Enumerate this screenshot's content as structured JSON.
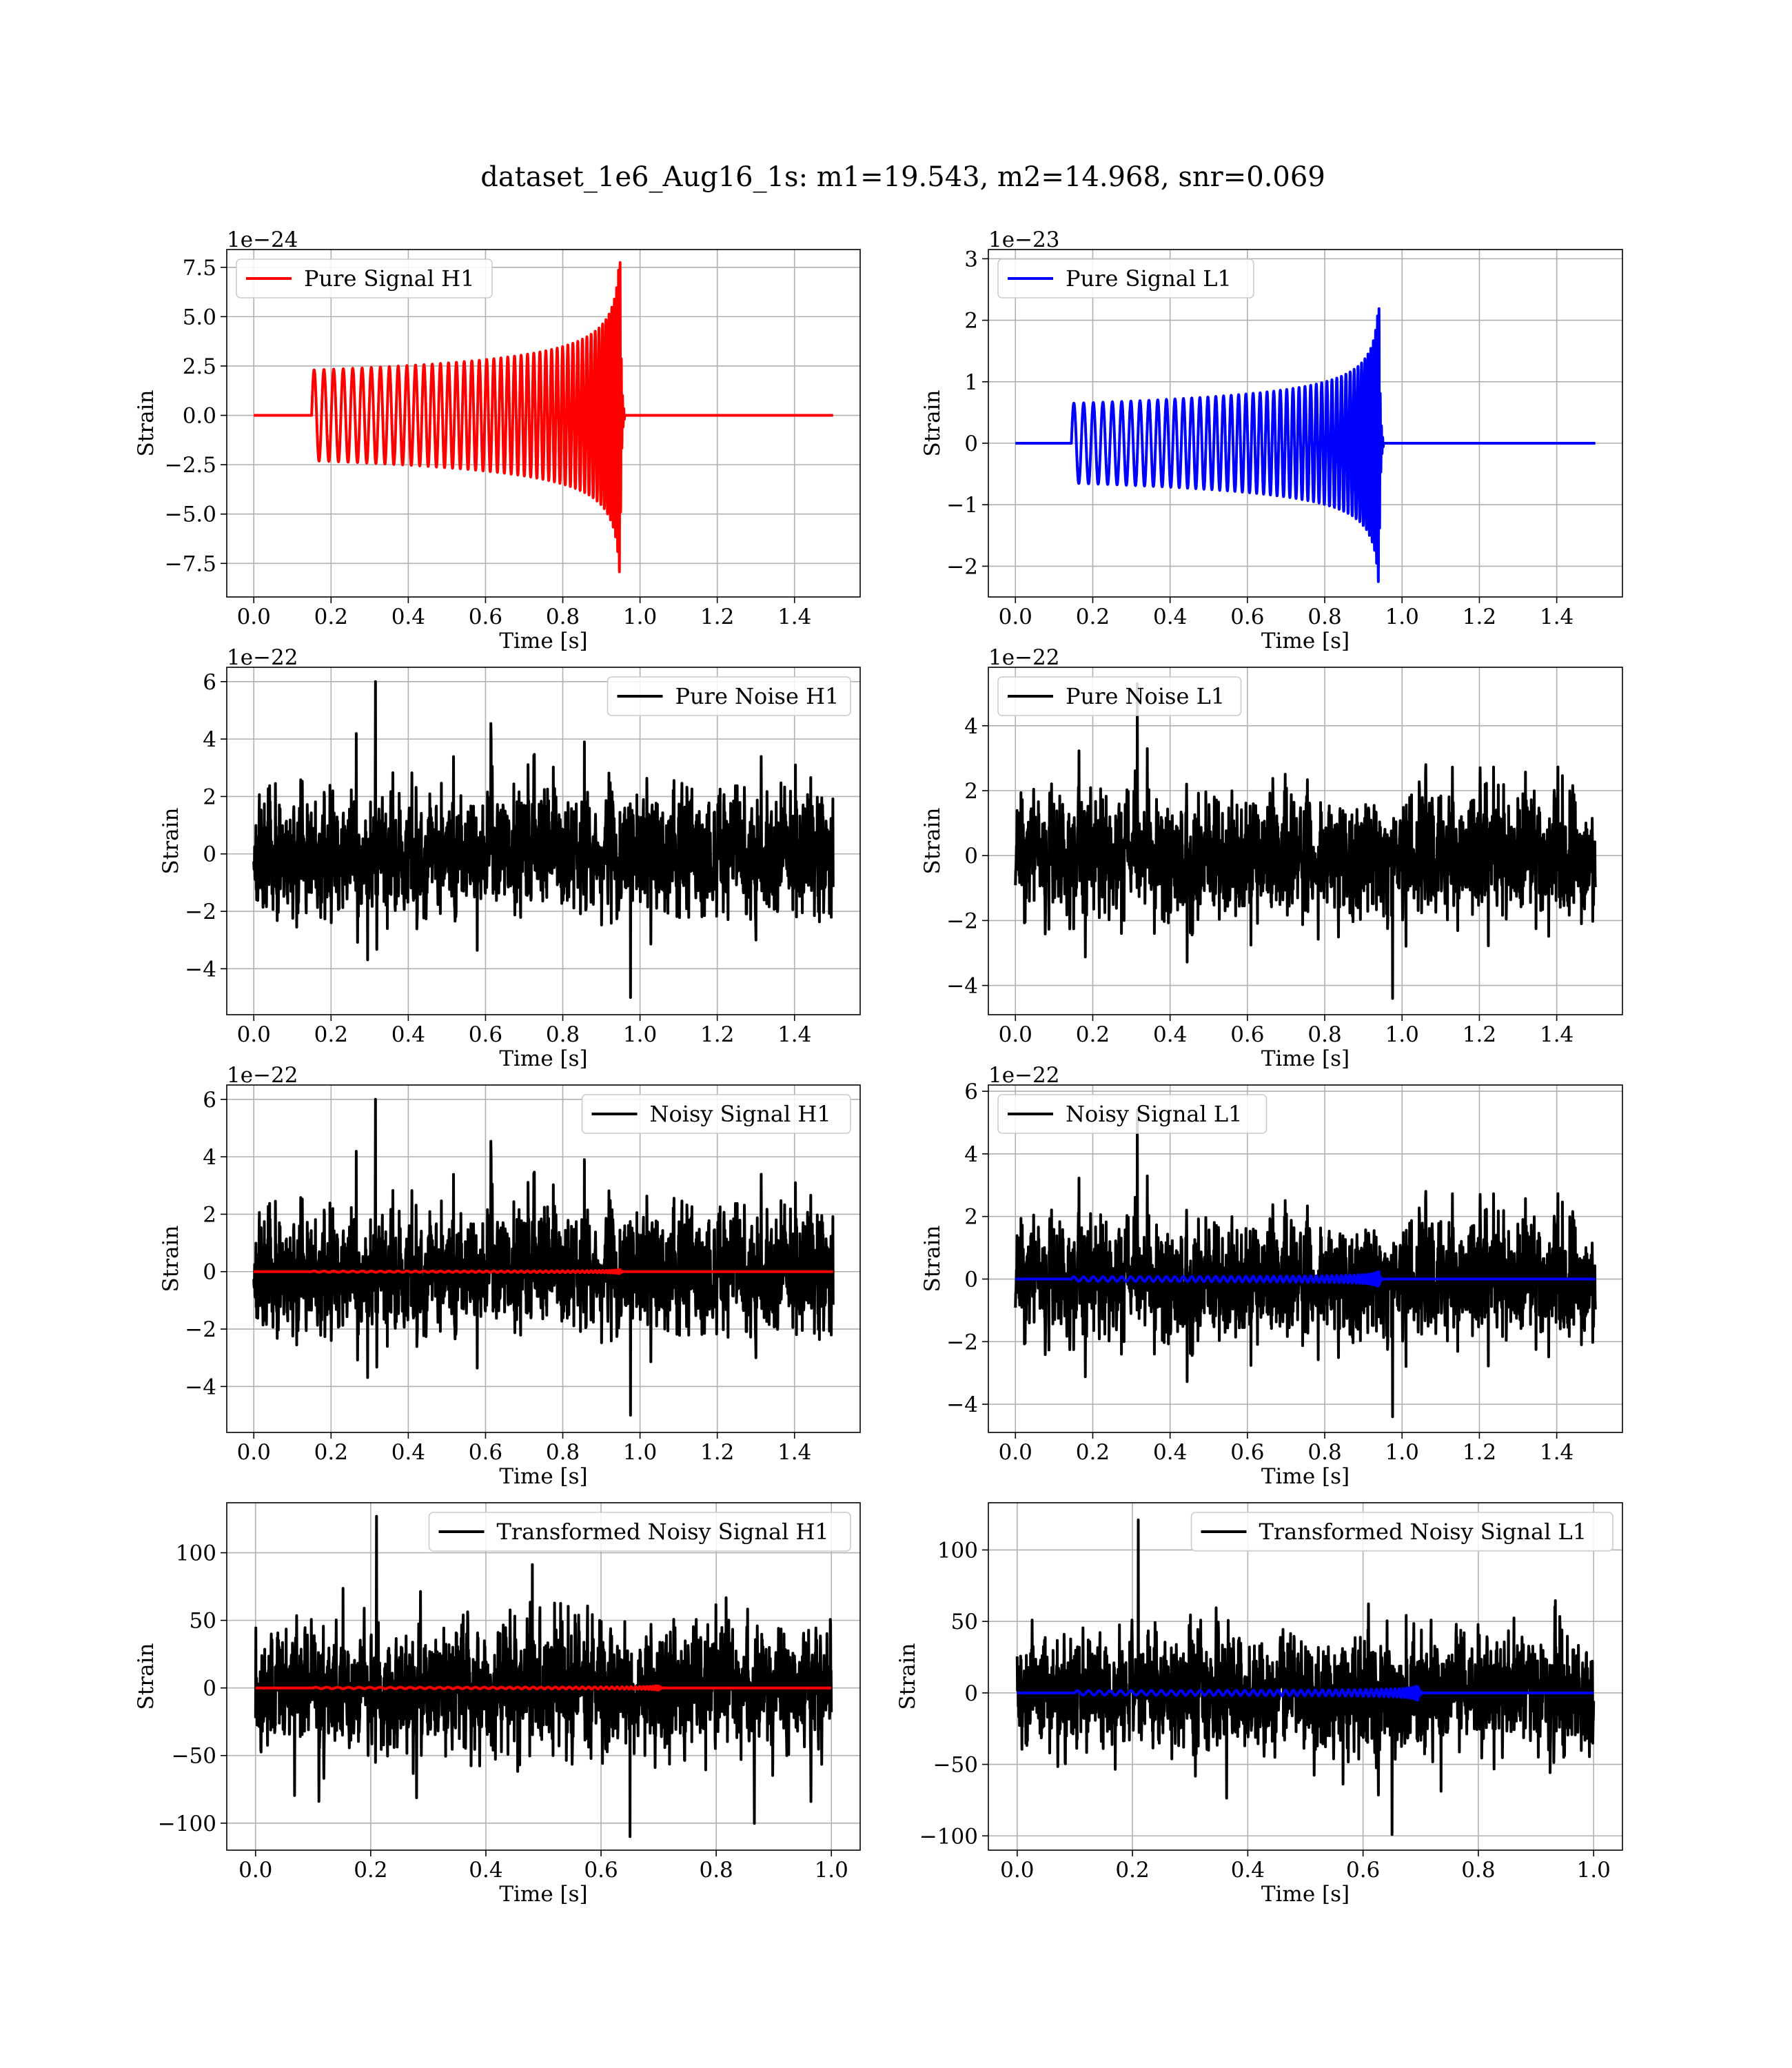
{
  "figure": {
    "title": "dataset_1e6_Aug16_1s: m1=19.543, m2=14.968, snr=0.069"
  },
  "chart_data": [
    {
      "type": "line",
      "id": "pure-signal-h1",
      "xlabel": "Time [s]",
      "ylabel": "Strain",
      "offset_text": "1e−24",
      "xlim": [
        -0.07,
        1.57
      ],
      "ylim": [
        -9.2,
        8.4
      ],
      "xticks": [
        0.0,
        0.2,
        0.4,
        0.6,
        0.8,
        1.0,
        1.2,
        1.4
      ],
      "xtick_labels": [
        "0.0",
        "0.2",
        "0.4",
        "0.6",
        "0.8",
        "1.0",
        "1.2",
        "1.4"
      ],
      "yticks": [
        -7.5,
        -5.0,
        -2.5,
        0.0,
        2.5,
        5.0,
        7.5
      ],
      "ytick_labels": [
        "−7.5",
        "−5.0",
        "−2.5",
        "0.0",
        "2.5",
        "5.0",
        "7.5"
      ],
      "grid": true,
      "legend_position": "upper left",
      "series": [
        {
          "name": "Pure Signal H1",
          "color": "#ff0000",
          "kind": "chirp",
          "t_start": 0.0,
          "t_end": 1.5,
          "t_onset": 0.15,
          "t_merge": 0.948,
          "amp_start": 2.3,
          "amp_peak_pos": 7.8,
          "amp_peak_neg": -8.9
        }
      ]
    },
    {
      "type": "line",
      "id": "pure-signal-l1",
      "xlabel": "Time [s]",
      "ylabel": "Strain",
      "offset_text": "1e−23",
      "xlim": [
        -0.07,
        1.57
      ],
      "ylim": [
        -2.5,
        3.15
      ],
      "xticks": [
        0.0,
        0.2,
        0.4,
        0.6,
        0.8,
        1.0,
        1.2,
        1.4
      ],
      "xtick_labels": [
        "0.0",
        "0.2",
        "0.4",
        "0.6",
        "0.8",
        "1.0",
        "1.2",
        "1.4"
      ],
      "yticks": [
        -2,
        -1,
        0,
        1,
        2,
        3
      ],
      "ytick_labels": [
        "−2",
        "−1",
        "0",
        "1",
        "2",
        "3"
      ],
      "grid": true,
      "legend_position": "upper left",
      "series": [
        {
          "name": "Pure Signal L1",
          "color": "#0000ff",
          "kind": "chirp",
          "t_start": 0.0,
          "t_end": 1.5,
          "t_onset": 0.145,
          "t_merge": 0.94,
          "amp_start": 0.65,
          "amp_peak_pos": 2.9,
          "amp_peak_neg": -2.3
        }
      ]
    },
    {
      "type": "line",
      "id": "pure-noise-h1",
      "xlabel": "Time [s]",
      "ylabel": "Strain",
      "offset_text": "1e−22",
      "xlim": [
        -0.07,
        1.57
      ],
      "ylim": [
        -5.6,
        6.5
      ],
      "xticks": [
        0.0,
        0.2,
        0.4,
        0.6,
        0.8,
        1.0,
        1.2,
        1.4
      ],
      "xtick_labels": [
        "0.0",
        "0.2",
        "0.4",
        "0.6",
        "0.8",
        "1.0",
        "1.2",
        "1.4"
      ],
      "yticks": [
        -4,
        -2,
        0,
        2,
        4,
        6
      ],
      "ytick_labels": [
        "−4",
        "−2",
        "0",
        "2",
        "4",
        "6"
      ],
      "grid": true,
      "legend_position": "upper right",
      "series": [
        {
          "name": "Pure Noise H1",
          "color": "#000000",
          "kind": "noise",
          "t_start": 0.0,
          "t_end": 1.5,
          "sigma": 1.25,
          "max": 6.0,
          "min": -5.0,
          "seed": 11
        }
      ]
    },
    {
      "type": "line",
      "id": "pure-noise-l1",
      "xlabel": "Time [s]",
      "ylabel": "Strain",
      "offset_text": "1e−22",
      "xlim": [
        -0.07,
        1.57
      ],
      "ylim": [
        -4.9,
        5.8
      ],
      "xticks": [
        0.0,
        0.2,
        0.4,
        0.6,
        0.8,
        1.0,
        1.2,
        1.4
      ],
      "xtick_labels": [
        "0.0",
        "0.2",
        "0.4",
        "0.6",
        "0.8",
        "1.0",
        "1.2",
        "1.4"
      ],
      "yticks": [
        -4,
        -2,
        0,
        2,
        4
      ],
      "ytick_labels": [
        "−4",
        "−2",
        "0",
        "2",
        "4"
      ],
      "grid": true,
      "legend_position": "upper left",
      "series": [
        {
          "name": "Pure Noise L1",
          "color": "#000000",
          "kind": "noise",
          "t_start": 0.0,
          "t_end": 1.5,
          "sigma": 1.1,
          "max": 5.3,
          "min": -4.4,
          "seed": 23
        }
      ]
    },
    {
      "type": "line",
      "id": "noisy-signal-h1",
      "xlabel": "Time [s]",
      "ylabel": "Strain",
      "offset_text": "1e−22",
      "xlim": [
        -0.07,
        1.57
      ],
      "ylim": [
        -5.6,
        6.5
      ],
      "xticks": [
        0.0,
        0.2,
        0.4,
        0.6,
        0.8,
        1.0,
        1.2,
        1.4
      ],
      "xtick_labels": [
        "0.0",
        "0.2",
        "0.4",
        "0.6",
        "0.8",
        "1.0",
        "1.2",
        "1.4"
      ],
      "yticks": [
        -4,
        -2,
        0,
        2,
        4,
        6
      ],
      "ytick_labels": [
        "−4",
        "−2",
        "0",
        "2",
        "4",
        "6"
      ],
      "grid": true,
      "legend_position": "upper right",
      "series": [
        {
          "name": "Noisy Signal H1",
          "color": "#000000",
          "kind": "noise",
          "t_start": 0.0,
          "t_end": 1.5,
          "sigma": 1.25,
          "max": 6.0,
          "min": -5.0,
          "seed": 11
        },
        {
          "name": "",
          "color": "#ff0000",
          "kind": "chirp",
          "t_start": 0.0,
          "t_end": 1.5,
          "t_onset": 0.15,
          "t_merge": 0.948,
          "amp_start": 0.02,
          "amp_peak_pos": 0.08,
          "amp_peak_neg": -0.09
        }
      ]
    },
    {
      "type": "line",
      "id": "noisy-signal-l1",
      "xlabel": "Time [s]",
      "ylabel": "Strain",
      "offset_text": "1e−22",
      "xlim": [
        -0.07,
        1.57
      ],
      "ylim": [
        -4.9,
        6.2
      ],
      "xticks": [
        0.0,
        0.2,
        0.4,
        0.6,
        0.8,
        1.0,
        1.2,
        1.4
      ],
      "xtick_labels": [
        "0.0",
        "0.2",
        "0.4",
        "0.6",
        "0.8",
        "1.0",
        "1.2",
        "1.4"
      ],
      "yticks": [
        -4,
        -2,
        0,
        2,
        4,
        6
      ],
      "ytick_labels": [
        "−4",
        "−2",
        "0",
        "2",
        "4",
        "6"
      ],
      "grid": true,
      "legend_position": "upper left",
      "series": [
        {
          "name": "Noisy Signal L1",
          "color": "#000000",
          "kind": "noise",
          "t_start": 0.0,
          "t_end": 1.5,
          "sigma": 1.1,
          "max": 5.4,
          "min": -4.4,
          "seed": 23
        },
        {
          "name": "",
          "color": "#0000ff",
          "kind": "chirp",
          "t_start": 0.0,
          "t_end": 1.5,
          "t_onset": 0.145,
          "t_merge": 0.94,
          "amp_start": 0.07,
          "amp_peak_pos": 0.29,
          "amp_peak_neg": -0.23
        }
      ]
    },
    {
      "type": "line",
      "id": "transformed-noisy-signal-h1",
      "xlabel": "Time [s]",
      "ylabel": "Strain",
      "offset_text": "",
      "xlim": [
        -0.05,
        1.05
      ],
      "ylim": [
        -120,
        137
      ],
      "xticks": [
        0.0,
        0.2,
        0.4,
        0.6,
        0.8,
        1.0
      ],
      "xtick_labels": [
        "0.0",
        "0.2",
        "0.4",
        "0.6",
        "0.8",
        "1.0"
      ],
      "yticks": [
        -100,
        -50,
        0,
        50,
        100
      ],
      "ytick_labels": [
        "−100",
        "−50",
        "0",
        "50",
        "100"
      ],
      "grid": true,
      "legend_position": "upper right",
      "series": [
        {
          "name": "Transformed Noisy Signal H1",
          "color": "#000000",
          "kind": "noise",
          "t_start": 0.0,
          "t_end": 1.0,
          "sigma": 27,
          "max": 127,
          "min": -110,
          "seed": 37
        },
        {
          "name": "",
          "color": "#ff0000",
          "kind": "chirp",
          "t_start": 0.0,
          "t_end": 1.0,
          "t_onset": 0.1,
          "t_merge": 0.7,
          "amp_start": 0.5,
          "amp_peak_pos": 2.0,
          "amp_peak_neg": -2.0
        }
      ]
    },
    {
      "type": "line",
      "id": "transformed-noisy-signal-l1",
      "xlabel": "Time [s]",
      "ylabel": "Strain",
      "offset_text": "",
      "xlim": [
        -0.05,
        1.05
      ],
      "ylim": [
        -110,
        133
      ],
      "xticks": [
        0.0,
        0.2,
        0.4,
        0.6,
        0.8,
        1.0
      ],
      "xtick_labels": [
        "0.0",
        "0.2",
        "0.4",
        "0.6",
        "0.8",
        "1.0"
      ],
      "yticks": [
        -100,
        -50,
        0,
        50,
        100
      ],
      "ytick_labels": [
        "−100",
        "−50",
        "0",
        "50",
        "100"
      ],
      "grid": true,
      "legend_position": "upper right",
      "series": [
        {
          "name": "Transformed Noisy Signal L1",
          "color": "#000000",
          "kind": "noise",
          "t_start": 0.0,
          "t_end": 1.0,
          "sigma": 24,
          "max": 121,
          "min": -99,
          "seed": 53
        },
        {
          "name": "",
          "color": "#0000ff",
          "kind": "chirp",
          "t_start": 0.0,
          "t_end": 1.0,
          "t_onset": 0.1,
          "t_merge": 0.695,
          "amp_start": 1.5,
          "amp_peak_pos": 8.0,
          "amp_peak_neg": -7.0
        }
      ]
    }
  ]
}
